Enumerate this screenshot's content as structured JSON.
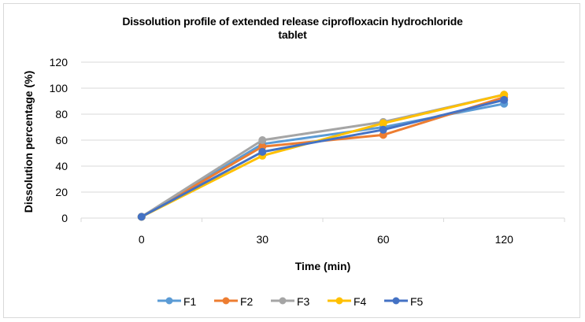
{
  "chart_data": {
    "type": "line",
    "title": "Dissolution profile of extended release ciprofloxacin hydrochloride tablet",
    "title_lines": [
      "Dissolution profile of extended release ciprofloxacin hydrochloride",
      "tablet"
    ],
    "xlabel": "Time (min)",
    "ylabel": "Dissolution percentage  (%)",
    "categories": [
      "0",
      "30",
      "60",
      "120"
    ],
    "ylim": [
      0,
      120
    ],
    "yticks": [
      0,
      20,
      40,
      60,
      80,
      100,
      120
    ],
    "grid": true,
    "legend_position": "bottom",
    "series": [
      {
        "name": "F1",
        "color": "#5b9bd5",
        "values": [
          1,
          57,
          70,
          88
        ]
      },
      {
        "name": "F2",
        "color": "#ed7d31",
        "values": [
          1,
          55,
          64,
          93
        ]
      },
      {
        "name": "F3",
        "color": "#a5a5a5",
        "values": [
          1,
          60,
          74,
          95
        ]
      },
      {
        "name": "F4",
        "color": "#ffc000",
        "values": [
          1,
          48,
          73,
          95
        ]
      },
      {
        "name": "F5",
        "color": "#4472c4",
        "values": [
          1,
          51,
          68,
          91
        ]
      }
    ]
  }
}
